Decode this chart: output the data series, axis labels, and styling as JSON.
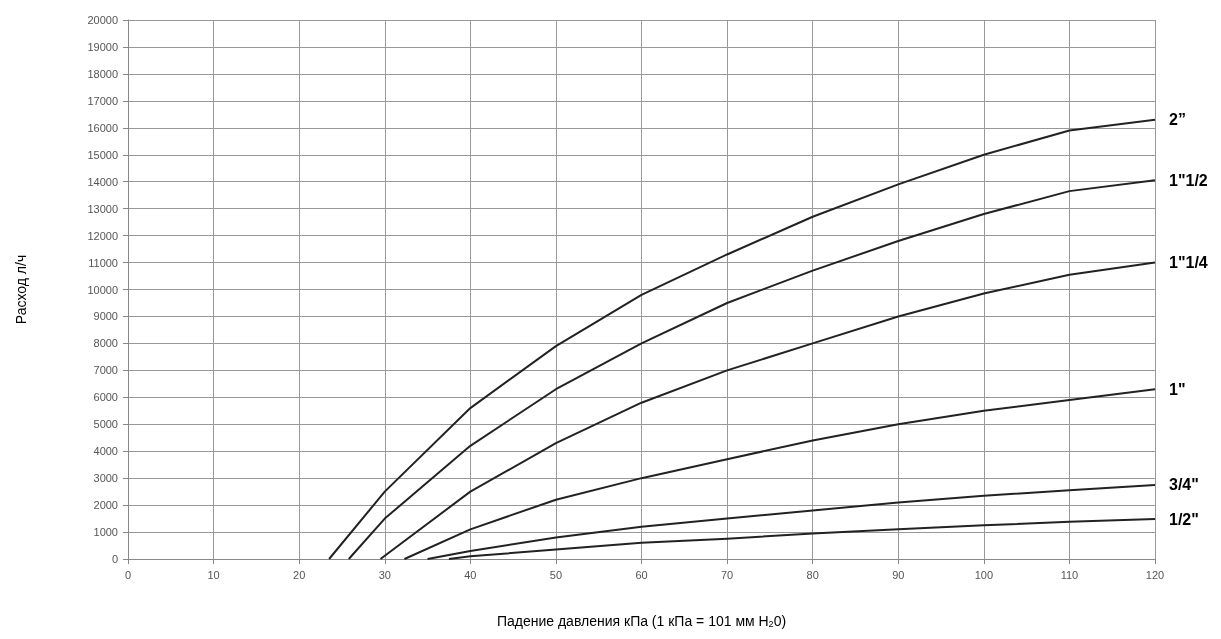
{
  "chart_data": {
    "type": "line",
    "xlabel": "Падение давления кПа (1 кПа = 101 мм H$_{2}$0)",
    "ylabel": "Расход л/ч",
    "xlim": [
      0,
      120
    ],
    "xticks": [
      0,
      10,
      20,
      30,
      40,
      50,
      60,
      70,
      80,
      90,
      100,
      110,
      120
    ],
    "ylim": [
      0,
      20000
    ],
    "yticks": [
      0,
      1000,
      2000,
      3000,
      4000,
      5000,
      6000,
      7000,
      8000,
      9000,
      10000,
      11000,
      12000,
      13000,
      14000,
      15000,
      16000,
      17000,
      18000,
      19000,
      20000
    ],
    "grid": true,
    "legend": false,
    "marker": "none",
    "line_style": "solid",
    "series": [
      {
        "name": "2”",
        "color": "#222222",
        "x": [
          23.5,
          30,
          40,
          50,
          60,
          70,
          80,
          90,
          100,
          110,
          120
        ],
        "values": [
          0,
          2500,
          5600,
          7900,
          9800,
          11300,
          12700,
          13900,
          15000,
          15900,
          16300
        ]
      },
      {
        "name": "1\"1/2",
        "color": "#222222",
        "x": [
          25.8,
          30,
          40,
          50,
          60,
          70,
          80,
          90,
          100,
          110,
          120
        ],
        "values": [
          0,
          1500,
          4200,
          6300,
          8000,
          9500,
          10700,
          11800,
          12800,
          13650,
          14050
        ]
      },
      {
        "name": "1\"1/4",
        "color": "#222222",
        "x": [
          29.5,
          40,
          50,
          60,
          70,
          80,
          90,
          100,
          110,
          120
        ],
        "values": [
          0,
          2500,
          4300,
          5800,
          7000,
          8000,
          9000,
          9850,
          10550,
          11000
        ]
      },
      {
        "name": "1\"",
        "color": "#222222",
        "x": [
          32.3,
          40,
          50,
          60,
          70,
          80,
          90,
          100,
          110,
          120
        ],
        "values": [
          0,
          1100,
          2200,
          3000,
          3700,
          4400,
          5000,
          5500,
          5900,
          6300
        ]
      },
      {
        "name": "3/4\"",
        "color": "#222222",
        "x": [
          35,
          40,
          50,
          60,
          70,
          80,
          90,
          100,
          110,
          120
        ],
        "values": [
          0,
          300,
          800,
          1200,
          1500,
          1800,
          2100,
          2350,
          2550,
          2750
        ]
      },
      {
        "name": "1/2\"",
        "color": "#222222",
        "x": [
          37.5,
          40,
          50,
          60,
          70,
          80,
          90,
          100,
          110,
          120
        ],
        "values": [
          0,
          100,
          350,
          600,
          750,
          950,
          1100,
          1250,
          1380,
          1480
        ]
      }
    ]
  }
}
